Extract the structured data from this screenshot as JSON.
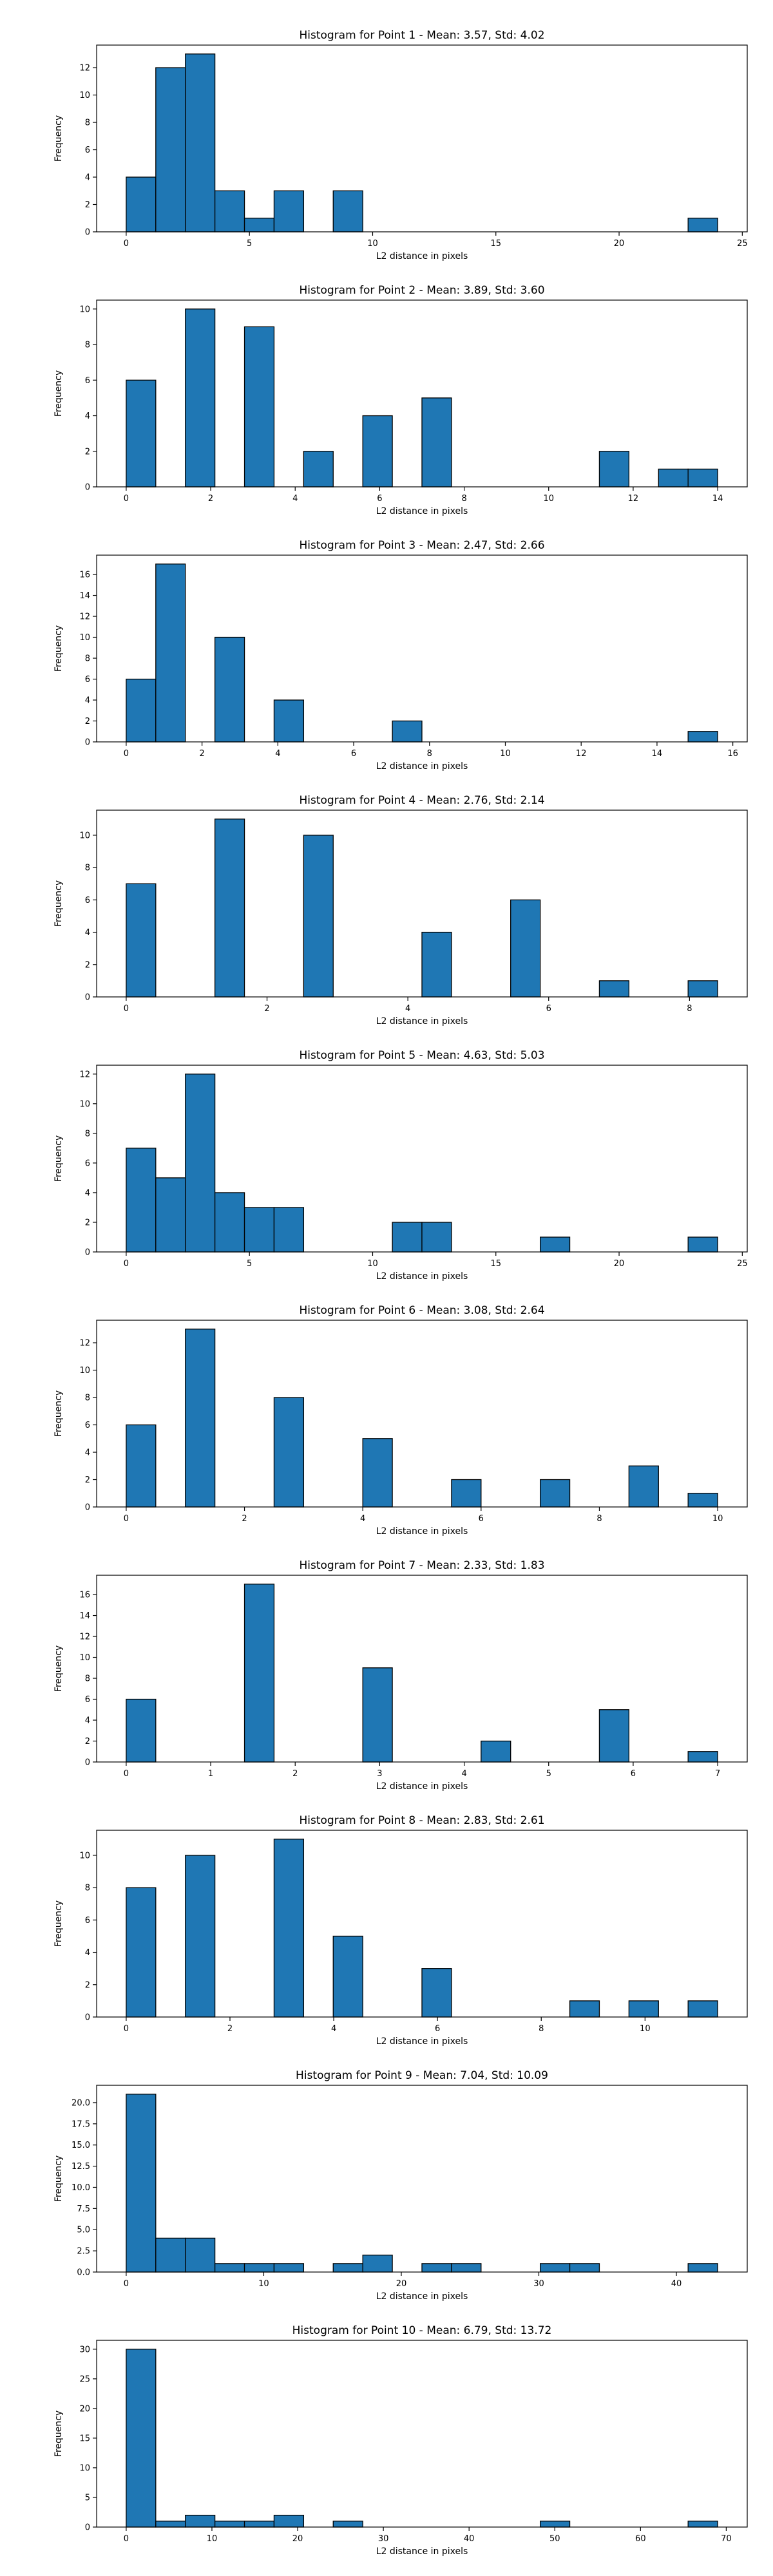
{
  "chart_data": [
    {
      "type": "bar",
      "title": "Histogram for Point 1 - Mean: 3.57, Std: 4.02",
      "xlabel": "L2 distance in pixels",
      "ylabel": "Frequency",
      "xlim": [
        -1.2,
        25.2
      ],
      "ylim": [
        0,
        13.65
      ],
      "xticks": [
        0,
        5,
        10,
        15,
        20,
        25
      ],
      "yticks": [
        0,
        2,
        4,
        6,
        8,
        10,
        12
      ],
      "grid": false,
      "bins": [
        [
          0,
          1.2,
          4
        ],
        [
          1.2,
          2.4,
          12
        ],
        [
          2.4,
          3.6,
          13
        ],
        [
          3.6,
          4.8,
          3
        ],
        [
          4.8,
          6.0,
          1
        ],
        [
          6.0,
          7.2,
          3
        ],
        [
          8.4,
          9.6,
          3
        ],
        [
          22.8,
          24.0,
          1
        ]
      ]
    },
    {
      "type": "bar",
      "title": "Histogram for Point 2 - Mean: 3.89, Std: 3.60",
      "xlabel": "L2 distance in pixels",
      "ylabel": "Frequency",
      "xlim": [
        -0.7,
        14.7
      ],
      "ylim": [
        0,
        10.5
      ],
      "xticks": [
        0,
        2,
        4,
        6,
        8,
        10,
        12,
        14
      ],
      "yticks": [
        0,
        2,
        4,
        6,
        8,
        10
      ],
      "grid": false,
      "bins": [
        [
          0,
          0.7,
          6
        ],
        [
          1.4,
          2.1,
          10
        ],
        [
          2.8,
          3.5,
          9
        ],
        [
          4.2,
          4.9,
          2
        ],
        [
          5.6,
          6.3,
          4
        ],
        [
          7.0,
          7.7,
          5
        ],
        [
          11.2,
          11.9,
          2
        ],
        [
          12.6,
          13.3,
          1
        ],
        [
          13.3,
          14.0,
          1
        ]
      ]
    },
    {
      "type": "bar",
      "title": "Histogram for Point 3 - Mean: 2.47, Std: 2.66",
      "xlabel": "L2 distance in pixels",
      "ylabel": "Frequency",
      "xlim": [
        -0.78,
        16.38
      ],
      "ylim": [
        0,
        17.85
      ],
      "xticks": [
        0,
        2,
        4,
        6,
        8,
        10,
        12,
        14,
        16
      ],
      "yticks": [
        0,
        2,
        4,
        6,
        8,
        10,
        12,
        14,
        16
      ],
      "grid": false,
      "bins": [
        [
          0,
          0.78,
          6
        ],
        [
          0.78,
          1.56,
          17
        ],
        [
          2.34,
          3.12,
          10
        ],
        [
          3.9,
          4.68,
          4
        ],
        [
          7.02,
          7.8,
          2
        ],
        [
          14.82,
          15.6,
          1
        ]
      ]
    },
    {
      "type": "bar",
      "title": "Histogram for Point 4 - Mean: 2.76, Std: 2.14",
      "xlabel": "L2 distance in pixels",
      "ylabel": "Frequency",
      "xlim": [
        -0.42,
        8.82
      ],
      "ylim": [
        0,
        11.55
      ],
      "xticks": [
        0,
        2,
        4,
        6,
        8
      ],
      "yticks": [
        0,
        2,
        4,
        6,
        8,
        10
      ],
      "grid": false,
      "bins": [
        [
          0,
          0.42,
          7
        ],
        [
          1.26,
          1.68,
          11
        ],
        [
          2.52,
          2.94,
          10
        ],
        [
          4.2,
          4.62,
          4
        ],
        [
          5.46,
          5.88,
          6
        ],
        [
          6.72,
          7.14,
          1
        ],
        [
          7.98,
          8.4,
          1
        ]
      ]
    },
    {
      "type": "bar",
      "title": "Histogram for Point 5 - Mean: 4.63, Std: 5.03",
      "xlabel": "L2 distance in pixels",
      "ylabel": "Frequency",
      "xlim": [
        -1.2,
        25.2
      ],
      "ylim": [
        0,
        12.6
      ],
      "xticks": [
        0,
        5,
        10,
        15,
        20,
        25
      ],
      "yticks": [
        0,
        2,
        4,
        6,
        8,
        10,
        12
      ],
      "grid": false,
      "bins": [
        [
          0,
          1.2,
          7
        ],
        [
          1.2,
          2.4,
          5
        ],
        [
          2.4,
          3.6,
          12
        ],
        [
          3.6,
          4.8,
          4
        ],
        [
          4.8,
          6.0,
          3
        ],
        [
          6.0,
          7.2,
          3
        ],
        [
          10.8,
          12.0,
          2
        ],
        [
          12.0,
          13.2,
          2
        ],
        [
          16.8,
          18.0,
          1
        ],
        [
          22.8,
          24.0,
          1
        ]
      ]
    },
    {
      "type": "bar",
      "title": "Histogram for Point 6 - Mean: 3.08, Std: 2.64",
      "xlabel": "L2 distance in pixels",
      "ylabel": "Frequency",
      "xlim": [
        -0.5,
        10.5
      ],
      "ylim": [
        0,
        13.65
      ],
      "xticks": [
        0,
        2,
        4,
        6,
        8,
        10
      ],
      "yticks": [
        0,
        2,
        4,
        6,
        8,
        10,
        12
      ],
      "grid": false,
      "bins": [
        [
          0,
          0.5,
          6
        ],
        [
          1.0,
          1.5,
          13
        ],
        [
          2.5,
          3.0,
          8
        ],
        [
          4.0,
          4.5,
          5
        ],
        [
          5.5,
          6.0,
          2
        ],
        [
          7.0,
          7.5,
          2
        ],
        [
          8.5,
          9.0,
          3
        ],
        [
          9.5,
          10.0,
          1
        ]
      ]
    },
    {
      "type": "bar",
      "title": "Histogram for Point 7 - Mean: 2.33, Std: 1.83",
      "xlabel": "L2 distance in pixels",
      "ylabel": "Frequency",
      "xlim": [
        -0.35,
        7.35
      ],
      "ylim": [
        0,
        17.85
      ],
      "xticks": [
        0,
        1,
        2,
        3,
        4,
        5,
        6,
        7
      ],
      "yticks": [
        0,
        2,
        4,
        6,
        8,
        10,
        12,
        14,
        16
      ],
      "grid": false,
      "bins": [
        [
          0,
          0.35,
          6
        ],
        [
          1.4,
          1.75,
          17
        ],
        [
          2.8,
          3.15,
          9
        ],
        [
          4.2,
          4.55,
          2
        ],
        [
          5.6,
          5.95,
          5
        ],
        [
          6.65,
          7.0,
          1
        ]
      ]
    },
    {
      "type": "bar",
      "title": "Histogram for Point 8 - Mean: 2.83, Std: 2.61",
      "xlabel": "L2 distance in pixels",
      "ylabel": "Frequency",
      "xlim": [
        -0.57,
        11.97
      ],
      "ylim": [
        0,
        11.55
      ],
      "xticks": [
        0,
        2,
        4,
        6,
        8,
        10
      ],
      "yticks": [
        0,
        2,
        4,
        6,
        8,
        10
      ],
      "grid": false,
      "bins": [
        [
          0,
          0.57,
          8
        ],
        [
          1.14,
          1.71,
          10
        ],
        [
          2.85,
          3.42,
          11
        ],
        [
          3.99,
          4.56,
          5
        ],
        [
          5.7,
          6.27,
          3
        ],
        [
          8.55,
          9.12,
          1
        ],
        [
          9.69,
          10.26,
          1
        ],
        [
          10.83,
          11.4,
          1
        ]
      ]
    },
    {
      "type": "bar",
      "title": "Histogram for Point 9 - Mean: 7.04, Std: 10.09",
      "xlabel": "L2 distance in pixels",
      "ylabel": "Frequency",
      "xlim": [
        -2.15,
        45.15
      ],
      "ylim": [
        0,
        22.05
      ],
      "xticks": [
        0,
        10,
        20,
        30,
        40
      ],
      "yticks": [
        "0.0",
        "2.5",
        "5.0",
        "7.5",
        "10.0",
        "12.5",
        "15.0",
        "17.5",
        "20.0"
      ],
      "grid": false,
      "bins": [
        [
          0,
          2.15,
          21
        ],
        [
          2.15,
          4.3,
          4
        ],
        [
          4.3,
          6.45,
          4
        ],
        [
          6.45,
          8.6,
          1
        ],
        [
          8.6,
          10.75,
          1
        ],
        [
          10.75,
          12.9,
          1
        ],
        [
          15.05,
          17.2,
          1
        ],
        [
          17.2,
          19.35,
          2
        ],
        [
          21.5,
          23.65,
          1
        ],
        [
          23.65,
          25.8,
          1
        ],
        [
          30.1,
          32.25,
          1
        ],
        [
          32.25,
          34.4,
          1
        ],
        [
          40.85,
          43.0,
          1
        ]
      ]
    },
    {
      "type": "bar",
      "title": "Histogram for Point 10 - Mean: 6.79, Std: 13.72",
      "xlabel": "L2 distance in pixels",
      "ylabel": "Frequency",
      "xlim": [
        -3.45,
        72.45
      ],
      "ylim": [
        0,
        31.5
      ],
      "xticks": [
        0,
        10,
        20,
        30,
        40,
        50,
        60,
        70
      ],
      "yticks": [
        0,
        5,
        10,
        15,
        20,
        25,
        30
      ],
      "grid": false,
      "bins": [
        [
          0,
          3.45,
          30
        ],
        [
          3.45,
          6.9,
          1
        ],
        [
          6.9,
          10.35,
          2
        ],
        [
          10.35,
          13.8,
          1
        ],
        [
          13.8,
          17.25,
          1
        ],
        [
          17.25,
          20.7,
          2
        ],
        [
          24.15,
          27.6,
          1
        ],
        [
          48.3,
          51.75,
          1
        ],
        [
          65.55,
          69.0,
          1
        ]
      ]
    }
  ]
}
